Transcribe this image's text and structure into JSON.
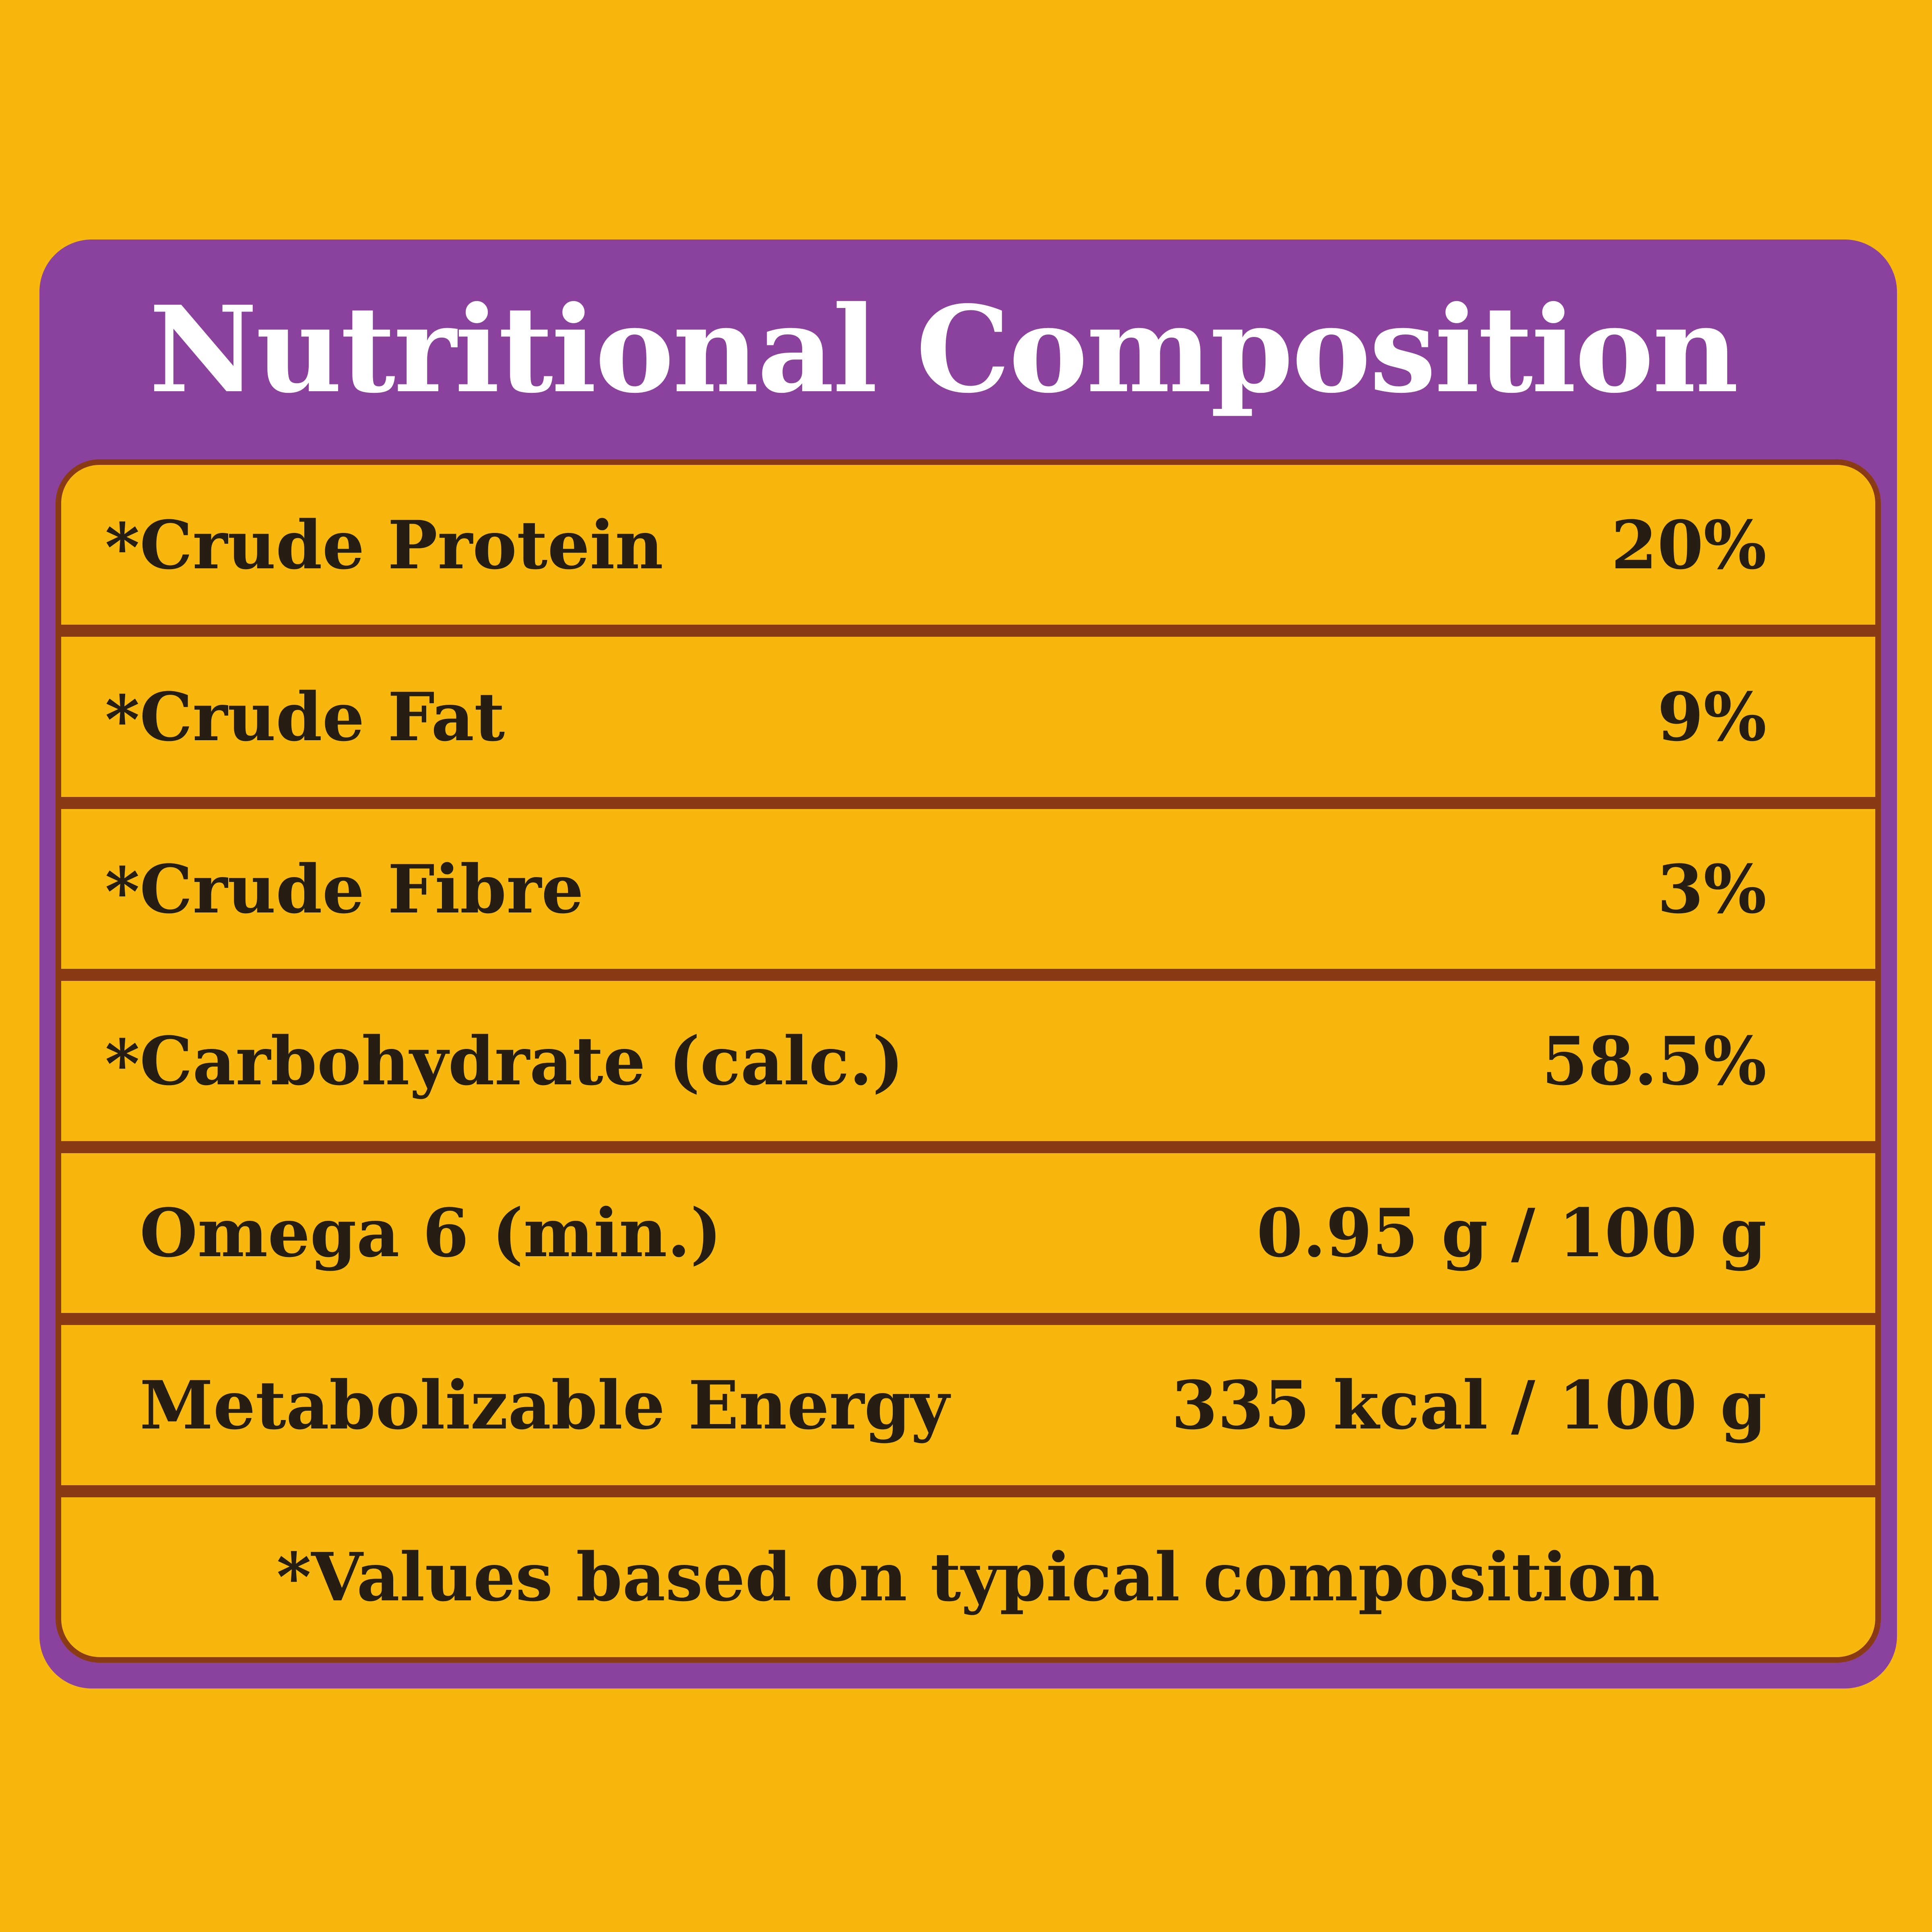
{
  "panel": {
    "title": "Nutritional Composition"
  },
  "table": {
    "rows": [
      {
        "star": "*",
        "label": "Crude Protein",
        "value": "20%"
      },
      {
        "star": "*",
        "label": "Crude Fat",
        "value": "9%"
      },
      {
        "star": "*",
        "label": "Crude Fibre",
        "value": "3%"
      },
      {
        "star": "*",
        "label": "Carbohydrate (calc.)",
        "value": "58.5%"
      },
      {
        "star": "",
        "label": "Omega 6 (min.)",
        "value": "0.95 g / 100 g"
      },
      {
        "star": "",
        "label": "Metabolizable Energy",
        "value": "335 kcal / 100 g"
      }
    ],
    "footnote": "*Values based on typical composition"
  },
  "colors": {
    "background": "#F8B70F",
    "panel": "#8A429C",
    "divider": "#8A3A14",
    "text": "#261E12",
    "title": "#FFFFFF"
  }
}
